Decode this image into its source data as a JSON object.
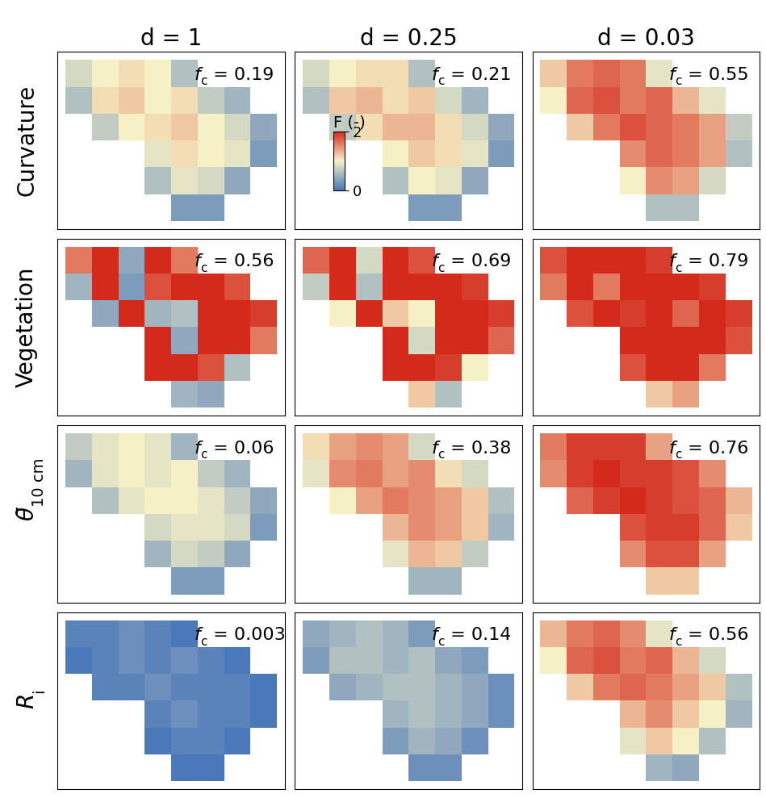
{
  "chart_data": {
    "type": "map_grid",
    "tick_labels": false,
    "columns": [
      "d = 1",
      "d = 0.25",
      "d = 0.03"
    ],
    "rows": [
      {
        "text": "Curvature"
      },
      {
        "text": "Vegetation"
      },
      {
        "text": "θ̄",
        "subscript": "10 cm"
      },
      {
        "text": "R",
        "subscript": "i"
      }
    ],
    "fc_label": {
      "symbol": "f",
      "subscript": "c",
      "separator": " = "
    },
    "colorbar": {
      "label": "F (-)",
      "range": [
        0,
        2
      ],
      "ticks": [
        0,
        2
      ]
    },
    "panels": [
      [
        {
          "fc": 0.19,
          "cells": [
            [
              0.8,
              1.0,
              1.1,
              1.0,
              0.6,
              null,
              null,
              null
            ],
            [
              0.6,
              1.1,
              1.2,
              1.0,
              1.1,
              0.7,
              0.5,
              null
            ],
            [
              null,
              0.7,
              1.0,
              1.1,
              1.2,
              1.0,
              0.8,
              0.4
            ],
            [
              null,
              null,
              null,
              0.9,
              1.1,
              1.0,
              0.9,
              0.3
            ],
            [
              null,
              null,
              null,
              0.6,
              0.9,
              0.8,
              0.4,
              null
            ],
            [
              null,
              null,
              null,
              null,
              0.3,
              0.3,
              null,
              null
            ]
          ]
        },
        {
          "fc": 0.21,
          "cells": [
            [
              0.8,
              1.0,
              1.1,
              1.1,
              0.6,
              null,
              null,
              null
            ],
            [
              0.6,
              1.2,
              1.3,
              1.1,
              1.2,
              0.8,
              0.5,
              null
            ],
            [
              null,
              0.7,
              1.1,
              1.3,
              1.3,
              1.1,
              0.8,
              0.4
            ],
            [
              null,
              null,
              null,
              1.0,
              1.2,
              1.1,
              0.9,
              0.3
            ],
            [
              null,
              null,
              null,
              0.6,
              1.0,
              0.9,
              0.4,
              null
            ],
            [
              null,
              null,
              null,
              null,
              0.3,
              0.3,
              null,
              null
            ]
          ]
        },
        {
          "fc": 0.55,
          "cells": [
            [
              1.2,
              1.6,
              1.7,
              1.6,
              0.9,
              null,
              null,
              null
            ],
            [
              1.0,
              1.7,
              1.8,
              1.6,
              1.7,
              1.3,
              0.9,
              null
            ],
            [
              null,
              1.2,
              1.6,
              1.8,
              1.7,
              1.6,
              1.4,
              0.7
            ],
            [
              null,
              null,
              null,
              1.5,
              1.7,
              1.6,
              1.4,
              0.6
            ],
            [
              null,
              null,
              null,
              1.0,
              1.5,
              1.4,
              0.8,
              null
            ],
            [
              null,
              null,
              null,
              null,
              0.6,
              0.6,
              null,
              null
            ]
          ]
        }
      ],
      [
        {
          "fc": 0.56,
          "cells": [
            [
              1.6,
              2.0,
              0.4,
              2.0,
              1.6,
              null,
              null,
              null
            ],
            [
              0.5,
              2.0,
              0.3,
              1.8,
              2.0,
              2.0,
              1.8,
              null
            ],
            [
              null,
              0.4,
              2.0,
              0.5,
              0.6,
              2.0,
              2.0,
              1.9
            ],
            [
              null,
              null,
              null,
              2.0,
              0.4,
              2.0,
              2.0,
              1.6
            ],
            [
              null,
              null,
              null,
              2.0,
              2.0,
              1.8,
              0.6,
              null
            ],
            [
              null,
              null,
              null,
              null,
              0.5,
              0.4,
              null,
              null
            ]
          ]
        },
        {
          "fc": 0.69,
          "cells": [
            [
              1.7,
              2.0,
              0.8,
              2.0,
              1.8,
              null,
              null,
              null
            ],
            [
              0.7,
              2.0,
              0.6,
              2.0,
              2.0,
              2.0,
              1.9,
              null
            ],
            [
              null,
              1.0,
              2.0,
              1.2,
              1.0,
              2.0,
              2.0,
              1.9
            ],
            [
              null,
              null,
              null,
              2.0,
              0.8,
              2.0,
              2.0,
              1.7
            ],
            [
              null,
              null,
              null,
              2.0,
              2.0,
              1.9,
              1.0,
              null
            ],
            [
              null,
              null,
              null,
              null,
              1.2,
              0.6,
              null,
              null
            ]
          ]
        },
        {
          "fc": 0.79,
          "cells": [
            [
              1.8,
              2.0,
              2.0,
              2.0,
              1.9,
              null,
              null,
              null
            ],
            [
              1.6,
              2.0,
              1.6,
              2.0,
              2.0,
              2.0,
              1.9,
              null
            ],
            [
              null,
              1.8,
              2.0,
              1.9,
              2.0,
              1.7,
              2.0,
              1.9
            ],
            [
              null,
              null,
              null,
              2.0,
              2.0,
              2.0,
              2.0,
              1.8
            ],
            [
              null,
              null,
              null,
              1.8,
              2.0,
              2.0,
              1.6,
              null
            ],
            [
              null,
              null,
              null,
              null,
              1.2,
              1.4,
              null,
              null
            ]
          ]
        }
      ],
      [
        {
          "fc": 0.06,
          "cells": [
            [
              0.7,
              0.9,
              1.0,
              0.9,
              0.5,
              null,
              null,
              null
            ],
            [
              0.5,
              0.9,
              1.0,
              0.9,
              1.0,
              0.7,
              0.5,
              null
            ],
            [
              null,
              0.6,
              0.9,
              1.0,
              1.0,
              0.9,
              0.7,
              0.4
            ],
            [
              null,
              null,
              null,
              0.8,
              0.9,
              0.9,
              0.8,
              0.3
            ],
            [
              null,
              null,
              null,
              0.5,
              0.8,
              0.7,
              0.4,
              null
            ],
            [
              null,
              null,
              null,
              null,
              0.3,
              0.3,
              null,
              null
            ]
          ]
        },
        {
          "fc": 0.38,
          "cells": [
            [
              1.1,
              1.4,
              1.5,
              1.4,
              0.8,
              null,
              null,
              null
            ],
            [
              0.9,
              1.5,
              1.6,
              1.4,
              1.5,
              1.1,
              0.8,
              null
            ],
            [
              null,
              1.0,
              1.4,
              1.6,
              1.5,
              1.4,
              1.2,
              0.6
            ],
            [
              null,
              null,
              null,
              1.3,
              1.5,
              1.4,
              1.2,
              0.5
            ],
            [
              null,
              null,
              null,
              0.9,
              1.3,
              1.2,
              0.7,
              null
            ],
            [
              null,
              null,
              null,
              null,
              0.5,
              0.5,
              null,
              null
            ]
          ]
        },
        {
          "fc": 0.76,
          "cells": [
            [
              1.6,
              1.9,
              1.9,
              1.9,
              1.4,
              null,
              null,
              null
            ],
            [
              1.5,
              1.9,
              2.0,
              1.9,
              1.9,
              1.8,
              1.5,
              null
            ],
            [
              null,
              1.7,
              1.9,
              2.0,
              1.9,
              1.8,
              1.7,
              1.3
            ],
            [
              null,
              null,
              null,
              1.8,
              1.9,
              1.9,
              1.7,
              1.2
            ],
            [
              null,
              null,
              null,
              1.5,
              1.8,
              1.8,
              1.4,
              null
            ],
            [
              null,
              null,
              null,
              null,
              1.2,
              1.2,
              null,
              null
            ]
          ]
        }
      ],
      [
        {
          "fc": 0.003,
          "cells": [
            [
              0.1,
              0.1,
              0.2,
              0.1,
              0.0,
              null,
              null,
              null
            ],
            [
              0.0,
              0.1,
              0.2,
              0.1,
              0.2,
              0.1,
              0.0,
              null
            ],
            [
              null,
              0.1,
              0.1,
              0.2,
              0.1,
              0.1,
              0.1,
              0.0
            ],
            [
              null,
              null,
              null,
              0.1,
              0.2,
              0.1,
              0.1,
              0.0
            ],
            [
              null,
              null,
              null,
              0.0,
              0.1,
              0.1,
              0.0,
              null
            ],
            [
              null,
              null,
              null,
              null,
              0.0,
              0.0,
              null,
              null
            ]
          ]
        },
        {
          "fc": 0.14,
          "cells": [
            [
              0.4,
              0.5,
              0.6,
              0.5,
              0.3,
              null,
              null,
              null
            ],
            [
              0.3,
              0.6,
              0.6,
              0.5,
              0.6,
              0.4,
              0.3,
              null
            ],
            [
              null,
              0.4,
              0.5,
              0.6,
              0.6,
              0.5,
              0.4,
              0.2
            ],
            [
              null,
              null,
              null,
              0.5,
              0.6,
              0.5,
              0.4,
              0.2
            ],
            [
              null,
              null,
              null,
              0.3,
              0.5,
              0.4,
              0.2,
              null
            ],
            [
              null,
              null,
              null,
              null,
              0.2,
              0.2,
              null,
              null
            ]
          ]
        },
        {
          "fc": 0.56,
          "cells": [
            [
              1.3,
              1.6,
              1.7,
              1.5,
              0.9,
              null,
              null,
              null
            ],
            [
              1.0,
              1.7,
              1.8,
              1.6,
              1.7,
              1.3,
              0.8,
              null
            ],
            [
              null,
              1.2,
              1.6,
              1.7,
              1.6,
              1.4,
              1.2,
              0.6
            ],
            [
              null,
              null,
              null,
              1.3,
              1.5,
              1.2,
              1.0,
              0.5
            ],
            [
              null,
              null,
              null,
              0.9,
              1.2,
              1.0,
              0.6,
              null
            ],
            [
              null,
              null,
              null,
              null,
              0.5,
              0.4,
              null,
              null
            ]
          ]
        }
      ]
    ]
  }
}
